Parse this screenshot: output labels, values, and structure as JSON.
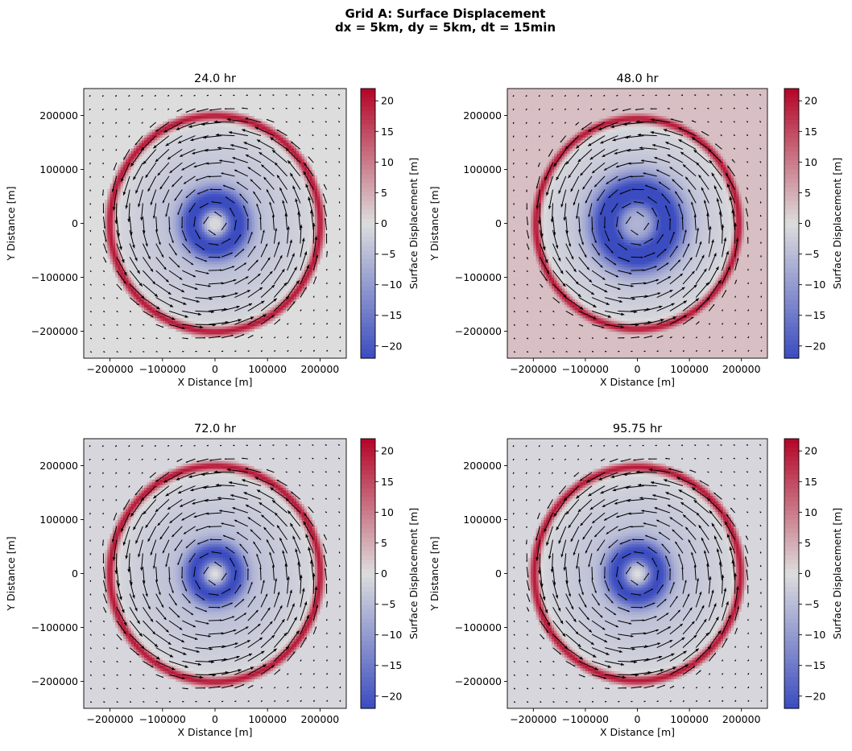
{
  "figure": {
    "suptitle_line1": "Grid A: Surface Displacement",
    "suptitle_line2": "dx = 5km, dy = 5km, dt = 15min"
  },
  "colors": {
    "cmap_low": "#3b4cc0",
    "cmap_mid": "#dddddd",
    "cmap_high": "#b40426",
    "arrow": "#000000"
  },
  "chart_data": [
    {
      "type": "heatmap",
      "title": "24.0 hr",
      "xlabel": "X Distance [m]",
      "ylabel": "Y Distance [m]",
      "xlim": [
        -250000,
        250000
      ],
      "ylim": [
        -250000,
        250000
      ],
      "xticks": [
        -200000,
        -100000,
        0,
        100000,
        200000
      ],
      "yticks": [
        -200000,
        -100000,
        0,
        100000,
        200000
      ],
      "colorbar": {
        "label": "Surface Displacement [m]",
        "vmin": -22,
        "vmax": 22,
        "ticks": [
          20,
          15,
          10,
          5,
          0,
          -5,
          -10,
          -15,
          -20
        ]
      },
      "field": {
        "ring_radius": 200000,
        "ring_peak": 20,
        "inner_trough": -18,
        "inner_radius": 45000,
        "center_value": 2,
        "far_field": 0
      },
      "quiver": {
        "spacing": 25000,
        "max_speed_location": "ring",
        "rotation": "counter-clockwise"
      }
    },
    {
      "type": "heatmap",
      "title": "48.0 hr",
      "xlabel": "X Distance [m]",
      "ylabel": "Y Distance [m]",
      "xlim": [
        -250000,
        250000
      ],
      "ylim": [
        -250000,
        250000
      ],
      "xticks": [
        -200000,
        -100000,
        0,
        100000,
        200000
      ],
      "yticks": [
        -200000,
        -100000,
        0,
        100000,
        200000
      ],
      "colorbar": {
        "label": "Surface Displacement [m]",
        "vmin": -22,
        "vmax": 22,
        "ticks": [
          20,
          15,
          10,
          5,
          0,
          -5,
          -10,
          -15,
          -20
        ]
      },
      "field": {
        "ring_radius": 195000,
        "ring_peak": 20,
        "inner_trough": -20,
        "inner_radius": 60000,
        "center_value": -6,
        "far_field": 3
      },
      "quiver": {
        "spacing": 25000,
        "max_speed_location": "ring",
        "rotation": "counter-clockwise"
      }
    },
    {
      "type": "heatmap",
      "title": "72.0 hr",
      "xlabel": "X Distance [m]",
      "ylabel": "Y Distance [m]",
      "xlim": [
        -250000,
        250000
      ],
      "ylim": [
        -250000,
        250000
      ],
      "xticks": [
        -200000,
        -100000,
        0,
        100000,
        200000
      ],
      "yticks": [
        -200000,
        -100000,
        0,
        100000,
        200000
      ],
      "colorbar": {
        "label": "Surface Displacement [m]",
        "vmin": -22,
        "vmax": 22,
        "ticks": [
          20,
          15,
          10,
          5,
          0,
          -5,
          -10,
          -15,
          -20
        ]
      },
      "field": {
        "ring_radius": 200000,
        "ring_peak": 20,
        "inner_trough": -17,
        "inner_radius": 40000,
        "center_value": 1,
        "far_field": -1
      },
      "quiver": {
        "spacing": 25000,
        "max_speed_location": "ring",
        "rotation": "counter-clockwise"
      }
    },
    {
      "type": "heatmap",
      "title": "95.75 hr",
      "xlabel": "X Distance [m]",
      "ylabel": "Y Distance [m]",
      "xlim": [
        -250000,
        250000
      ],
      "ylim": [
        -250000,
        250000
      ],
      "xticks": [
        -200000,
        -100000,
        0,
        100000,
        200000
      ],
      "yticks": [
        -200000,
        -100000,
        0,
        100000,
        200000
      ],
      "colorbar": {
        "label": "Surface Displacement [m]",
        "vmin": -22,
        "vmax": 22,
        "ticks": [
          20,
          15,
          10,
          5,
          0,
          -5,
          -10,
          -15,
          -20
        ]
      },
      "field": {
        "ring_radius": 198000,
        "ring_peak": 20,
        "inner_trough": -17,
        "inner_radius": 42000,
        "center_value": 1,
        "far_field": -1
      },
      "quiver": {
        "spacing": 25000,
        "max_speed_location": "ring",
        "rotation": "counter-clockwise"
      }
    }
  ]
}
